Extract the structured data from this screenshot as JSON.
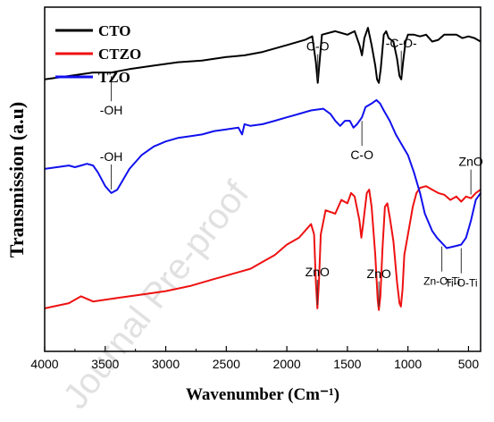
{
  "chart_data": {
    "type": "line",
    "xlabel": "Wavenumber (Cm⁻¹)",
    "ylabel": "Transmission (a.u)",
    "xlim": [
      4000,
      400
    ],
    "x_ticks": [
      "4000",
      "3500",
      "3000",
      "2500",
      "2000",
      "1500",
      "1000",
      "500"
    ],
    "x_tick_values": [
      4000,
      3500,
      3000,
      2500,
      2000,
      1500,
      1000,
      500
    ],
    "y_ticks": "none",
    "y_range": [
      0,
      100
    ],
    "grid": false,
    "legend_position": "top-left",
    "colors": {
      "CTO": "#000000",
      "CTZO": "#ee1111",
      "TZO": "#1010ee"
    },
    "series": [
      {
        "name": "CTO",
        "color": "#000000",
        "points": [
          [
            4000,
            79
          ],
          [
            3800,
            80
          ],
          [
            3600,
            81
          ],
          [
            3450,
            81
          ],
          [
            3300,
            82
          ],
          [
            3100,
            83
          ],
          [
            3000,
            83.5
          ],
          [
            2900,
            84
          ],
          [
            2700,
            84.5
          ],
          [
            2500,
            85.5
          ],
          [
            2350,
            86
          ],
          [
            2200,
            87
          ],
          [
            2000,
            89
          ],
          [
            1850,
            90.5
          ],
          [
            1790,
            91.5
          ],
          [
            1760,
            84
          ],
          [
            1745,
            78
          ],
          [
            1730,
            84
          ],
          [
            1710,
            92
          ],
          [
            1600,
            93
          ],
          [
            1500,
            92
          ],
          [
            1440,
            93
          ],
          [
            1400,
            89
          ],
          [
            1380,
            86
          ],
          [
            1360,
            91
          ],
          [
            1330,
            94
          ],
          [
            1300,
            89
          ],
          [
            1270,
            83
          ],
          [
            1255,
            79
          ],
          [
            1240,
            78
          ],
          [
            1225,
            82
          ],
          [
            1200,
            92
          ],
          [
            1180,
            93
          ],
          [
            1160,
            91
          ],
          [
            1120,
            90
          ],
          [
            1090,
            85
          ],
          [
            1070,
            80
          ],
          [
            1055,
            79
          ],
          [
            1040,
            84
          ],
          [
            1020,
            90
          ],
          [
            1000,
            92
          ],
          [
            950,
            92
          ],
          [
            900,
            91.5
          ],
          [
            850,
            92
          ],
          [
            800,
            90
          ],
          [
            750,
            90.5
          ],
          [
            700,
            92
          ],
          [
            650,
            92
          ],
          [
            600,
            92
          ],
          [
            550,
            91
          ],
          [
            500,
            91.5
          ],
          [
            450,
            91
          ],
          [
            400,
            90
          ]
        ]
      },
      {
        "name": "CTZO",
        "color": "#ee1111",
        "points": [
          [
            4000,
            12.5
          ],
          [
            3800,
            14
          ],
          [
            3700,
            16
          ],
          [
            3600,
            14.5
          ],
          [
            3500,
            15
          ],
          [
            3400,
            15.5
          ],
          [
            3300,
            16
          ],
          [
            3200,
            16.5
          ],
          [
            3000,
            17.5
          ],
          [
            2800,
            19
          ],
          [
            2600,
            21
          ],
          [
            2500,
            22
          ],
          [
            2400,
            23
          ],
          [
            2300,
            24
          ],
          [
            2200,
            26
          ],
          [
            2100,
            28
          ],
          [
            2000,
            31
          ],
          [
            1900,
            33
          ],
          [
            1800,
            37
          ],
          [
            1775,
            34
          ],
          [
            1760,
            20
          ],
          [
            1748,
            12.5
          ],
          [
            1735,
            20
          ],
          [
            1720,
            34
          ],
          [
            1680,
            41
          ],
          [
            1600,
            40
          ],
          [
            1550,
            44
          ],
          [
            1500,
            43
          ],
          [
            1470,
            46
          ],
          [
            1440,
            45
          ],
          [
            1400,
            38
          ],
          [
            1385,
            33
          ],
          [
            1370,
            37
          ],
          [
            1340,
            46
          ],
          [
            1320,
            47
          ],
          [
            1300,
            42
          ],
          [
            1270,
            28
          ],
          [
            1250,
            15
          ],
          [
            1240,
            12
          ],
          [
            1228,
            16
          ],
          [
            1210,
            30
          ],
          [
            1190,
            42
          ],
          [
            1170,
            43
          ],
          [
            1150,
            39
          ],
          [
            1120,
            32
          ],
          [
            1090,
            20
          ],
          [
            1070,
            14
          ],
          [
            1058,
            13
          ],
          [
            1045,
            18
          ],
          [
            1030,
            28
          ],
          [
            1000,
            34
          ],
          [
            960,
            42
          ],
          [
            930,
            46
          ],
          [
            900,
            47.5
          ],
          [
            850,
            48
          ],
          [
            800,
            47
          ],
          [
            750,
            46
          ],
          [
            700,
            45.5
          ],
          [
            650,
            44
          ],
          [
            600,
            45
          ],
          [
            560,
            43.5
          ],
          [
            520,
            45
          ],
          [
            480,
            44.5
          ],
          [
            440,
            46
          ],
          [
            400,
            47
          ]
        ]
      },
      {
        "name": "TZO",
        "color": "#1010ee",
        "points": [
          [
            4000,
            53
          ],
          [
            3900,
            53.5
          ],
          [
            3800,
            54
          ],
          [
            3750,
            53.5
          ],
          [
            3700,
            54
          ],
          [
            3650,
            54.5
          ],
          [
            3600,
            54
          ],
          [
            3560,
            52
          ],
          [
            3500,
            48
          ],
          [
            3450,
            46
          ],
          [
            3400,
            47
          ],
          [
            3350,
            50
          ],
          [
            3300,
            53
          ],
          [
            3200,
            57
          ],
          [
            3100,
            59.5
          ],
          [
            3000,
            61
          ],
          [
            2900,
            62
          ],
          [
            2800,
            62.5
          ],
          [
            2700,
            63
          ],
          [
            2600,
            64
          ],
          [
            2500,
            64.5
          ],
          [
            2400,
            65
          ],
          [
            2370,
            63
          ],
          [
            2350,
            66
          ],
          [
            2300,
            65.5
          ],
          [
            2200,
            66
          ],
          [
            2100,
            67
          ],
          [
            2000,
            68
          ],
          [
            1900,
            69
          ],
          [
            1800,
            70
          ],
          [
            1700,
            70.5
          ],
          [
            1640,
            69
          ],
          [
            1600,
            67
          ],
          [
            1560,
            65.5
          ],
          [
            1520,
            67
          ],
          [
            1480,
            67
          ],
          [
            1450,
            65
          ],
          [
            1420,
            66
          ],
          [
            1380,
            68
          ],
          [
            1350,
            71
          ],
          [
            1300,
            72
          ],
          [
            1260,
            73
          ],
          [
            1230,
            72
          ],
          [
            1200,
            70
          ],
          [
            1150,
            67
          ],
          [
            1100,
            63
          ],
          [
            1050,
            60
          ],
          [
            1000,
            57
          ],
          [
            950,
            52
          ],
          [
            900,
            46
          ],
          [
            860,
            40
          ],
          [
            800,
            35
          ],
          [
            760,
            33
          ],
          [
            720,
            31.5
          ],
          [
            680,
            30
          ],
          [
            620,
            30.5
          ],
          [
            560,
            31
          ],
          [
            520,
            33
          ],
          [
            480,
            38
          ],
          [
            440,
            44
          ],
          [
            400,
            46
          ]
        ]
      }
    ],
    "annotations": [
      {
        "text": "C-O",
        "series": "CTO",
        "x": 1745,
        "label_pos": "above"
      },
      {
        "text": "-C-O-",
        "series": "CTO",
        "x": 1055,
        "label_pos": "above"
      },
      {
        "text": "-OH",
        "series": "CTO",
        "x": 3450,
        "label_pos": "below"
      },
      {
        "text": "C-O",
        "series": "TZO",
        "x": 1380,
        "label_pos": "below"
      },
      {
        "text": "-OH",
        "series": "TZO",
        "x": 3450,
        "label_pos": "above"
      },
      {
        "text": "ZnO",
        "series": "CTZO",
        "x": 1748,
        "label_pos": "above"
      },
      {
        "text": "ZnO",
        "series": "CTZO",
        "x": 1240,
        "label_pos": "above"
      },
      {
        "text": "ZnO",
        "series": "CTZO",
        "x": 480,
        "label_pos": "above"
      },
      {
        "text": "Zn-O-Ti",
        "series": "TZO",
        "x": 720,
        "label_pos": "below"
      },
      {
        "text": "Ti-O-Ti",
        "series": "TZO",
        "x": 560,
        "label_pos": "below"
      }
    ]
  },
  "watermark": "Journal Pre-proof"
}
